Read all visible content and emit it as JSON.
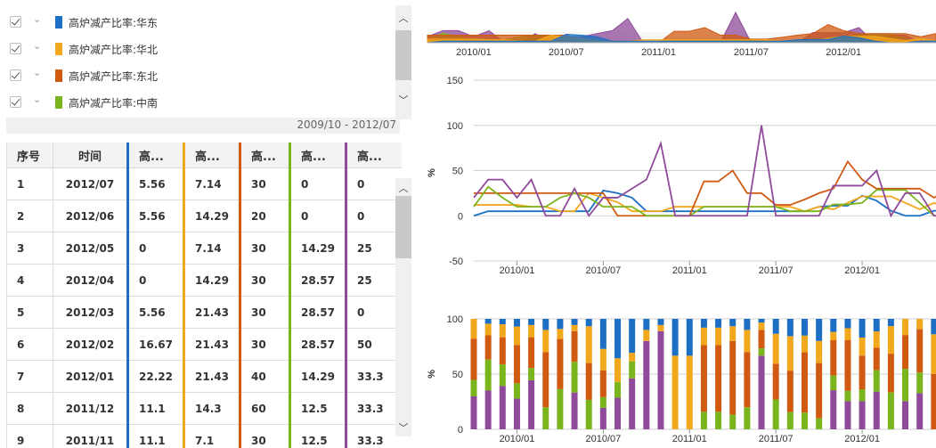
{
  "legend": {
    "items": [
      {
        "label": "高炉减产比率:华东",
        "color": "#1c6fc3"
      },
      {
        "label": "高炉减产比率:华北",
        "color": "#f2a81d"
      },
      {
        "label": "高炉减产比率:东北",
        "color": "#d15a12"
      },
      {
        "label": "高炉减产比率:中南",
        "color": "#7ab51d"
      }
    ],
    "date_range": "2009/10 - 2012/07"
  },
  "table": {
    "headers": [
      "序号",
      "时间",
      "高...",
      "高...",
      "高...",
      "高...",
      "高..."
    ],
    "rows": [
      [
        "1",
        "2012/07",
        "5.56",
        "7.14",
        "30",
        "0",
        "0"
      ],
      [
        "2",
        "2012/06",
        "5.56",
        "14.29",
        "20",
        "0",
        "0"
      ],
      [
        "3",
        "2012/05",
        "0",
        "7.14",
        "30",
        "14.29",
        "25"
      ],
      [
        "4",
        "2012/04",
        "0",
        "14.29",
        "30",
        "28.57",
        "25"
      ],
      [
        "5",
        "2012/03",
        "5.56",
        "21.43",
        "30",
        "28.57",
        "0"
      ],
      [
        "6",
        "2012/02",
        "16.67",
        "21.43",
        "30",
        "28.57",
        "50"
      ],
      [
        "7",
        "2012/01",
        "22.22",
        "21.43",
        "40",
        "14.29",
        "33.3"
      ],
      [
        "8",
        "2011/12",
        "11.1",
        "14.3",
        "60",
        "12.5",
        "33.3"
      ],
      [
        "9",
        "2011/11",
        "11.1",
        "7.1",
        "30",
        "12.5",
        "33.3"
      ]
    ]
  },
  "chart_data": [
    {
      "type": "line",
      "xlabel": "",
      "ylabel": "%",
      "ylim": [
        -50,
        150
      ],
      "yticks": [
        -50,
        0,
        50,
        100,
        150
      ],
      "x_tick_labels": [
        "2010/01",
        "2010/07",
        "2011/01",
        "2011/07",
        "2012/01"
      ],
      "grid": true,
      "x": [
        "2009/10",
        "2009/11",
        "2009/12",
        "2010/01",
        "2010/02",
        "2010/03",
        "2010/04",
        "2010/05",
        "2010/06",
        "2010/07",
        "2010/08",
        "2010/09",
        "2010/10",
        "2010/11",
        "2010/12",
        "2011/01",
        "2011/02",
        "2011/03",
        "2011/04",
        "2011/05",
        "2011/06",
        "2011/07",
        "2011/08",
        "2011/09",
        "2011/10",
        "2011/11",
        "2011/12",
        "2012/01",
        "2012/02",
        "2012/03",
        "2012/04",
        "2012/05",
        "2012/06",
        "2012/07"
      ],
      "series": [
        {
          "color": "#1c6fc3",
          "values": [
            0,
            5,
            5,
            5,
            5,
            5,
            5,
            5,
            5,
            28,
            25,
            20,
            5,
            5,
            5,
            5,
            5,
            5,
            5,
            5,
            5,
            5,
            5,
            5,
            10,
            11.1,
            11.1,
            22.22,
            16.67,
            5.56,
            0,
            0,
            5.56,
            5.56
          ]
        },
        {
          "color": "#f2a81d",
          "values": [
            12,
            12,
            12,
            12,
            10,
            10,
            5,
            5,
            25,
            20,
            15,
            5,
            5,
            5,
            10,
            10,
            10,
            10,
            10,
            10,
            10,
            10,
            10,
            5,
            10,
            7.1,
            14.3,
            21.43,
            21.43,
            21.43,
            14.29,
            7.14,
            14.29,
            7.14
          ]
        },
        {
          "color": "#d15a12",
          "values": [
            25,
            25,
            25,
            25,
            25,
            25,
            25,
            25,
            25,
            25,
            0,
            0,
            0,
            0,
            0,
            0,
            38,
            38,
            50,
            25,
            25,
            12,
            12,
            18,
            25,
            30,
            60,
            40,
            30,
            30,
            30,
            30,
            20,
            30
          ]
        },
        {
          "color": "#7ab51d",
          "values": [
            10,
            32,
            20,
            10,
            10,
            10,
            20,
            25,
            20,
            10,
            10,
            10,
            0,
            0,
            0,
            0,
            10,
            10,
            10,
            10,
            10,
            10,
            5,
            5,
            5,
            12.5,
            12.5,
            14.29,
            28.57,
            28.57,
            28.57,
            14.29,
            0,
            0
          ]
        },
        {
          "color": "#8f4a9a",
          "values": [
            20,
            40,
            40,
            20,
            40,
            0,
            0,
            30,
            0,
            20,
            20,
            30,
            40,
            80,
            0,
            0,
            0,
            0,
            0,
            0,
            100,
            0,
            0,
            0,
            0,
            33.3,
            33.3,
            33.3,
            50,
            0,
            25,
            25,
            0,
            0
          ]
        }
      ]
    },
    {
      "type": "bar",
      "stacked": true,
      "ylabel": "%",
      "ylim": [
        0,
        100
      ],
      "yticks": [
        0,
        50,
        100
      ],
      "x_tick_labels": [
        "2010/01",
        "2010/07",
        "2011/01",
        "2011/07",
        "2012/01"
      ]
    }
  ],
  "mini_chart": {
    "x_tick_labels": [
      "2010/01",
      "2010/07",
      "2011/01",
      "2011/07",
      "2012/01"
    ]
  }
}
